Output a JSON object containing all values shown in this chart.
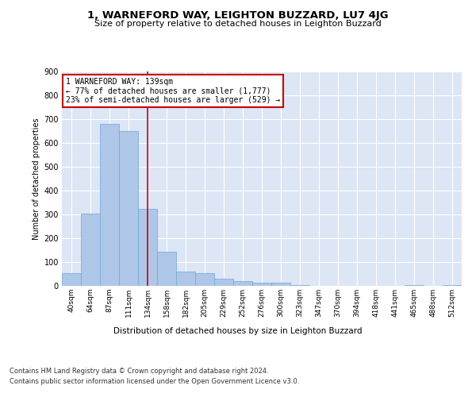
{
  "title": "1, WARNEFORD WAY, LEIGHTON BUZZARD, LU7 4JG",
  "subtitle": "Size of property relative to detached houses in Leighton Buzzard",
  "xlabel": "Distribution of detached houses by size in Leighton Buzzard",
  "ylabel": "Number of detached properties",
  "bar_labels": [
    "40sqm",
    "64sqm",
    "87sqm",
    "111sqm",
    "134sqm",
    "158sqm",
    "182sqm",
    "205sqm",
    "229sqm",
    "252sqm",
    "276sqm",
    "300sqm",
    "323sqm",
    "347sqm",
    "370sqm",
    "394sqm",
    "418sqm",
    "441sqm",
    "465sqm",
    "488sqm",
    "512sqm"
  ],
  "bar_values": [
    55,
    305,
    680,
    650,
    325,
    145,
    60,
    55,
    30,
    20,
    15,
    15,
    5,
    0,
    0,
    0,
    0,
    0,
    5,
    0,
    5
  ],
  "bar_color": "#aec6e8",
  "bar_edge_color": "#6fa8d6",
  "background_color": "#dce6f5",
  "grid_color": "#ffffff",
  "red_line_index": 4,
  "red_line_color": "#cc0000",
  "annotation_line1": "1 WARNEFORD WAY: 139sqm",
  "annotation_line2": "← 77% of detached houses are smaller (1,777)",
  "annotation_line3": "23% of semi-detached houses are larger (529) →",
  "annotation_box_color": "#ffffff",
  "annotation_box_edge": "#cc0000",
  "ylim": [
    0,
    900
  ],
  "yticks": [
    0,
    100,
    200,
    300,
    400,
    500,
    600,
    700,
    800,
    900
  ],
  "footer_line1": "Contains HM Land Registry data © Crown copyright and database right 2024.",
  "footer_line2": "Contains public sector information licensed under the Open Government Licence v3.0."
}
